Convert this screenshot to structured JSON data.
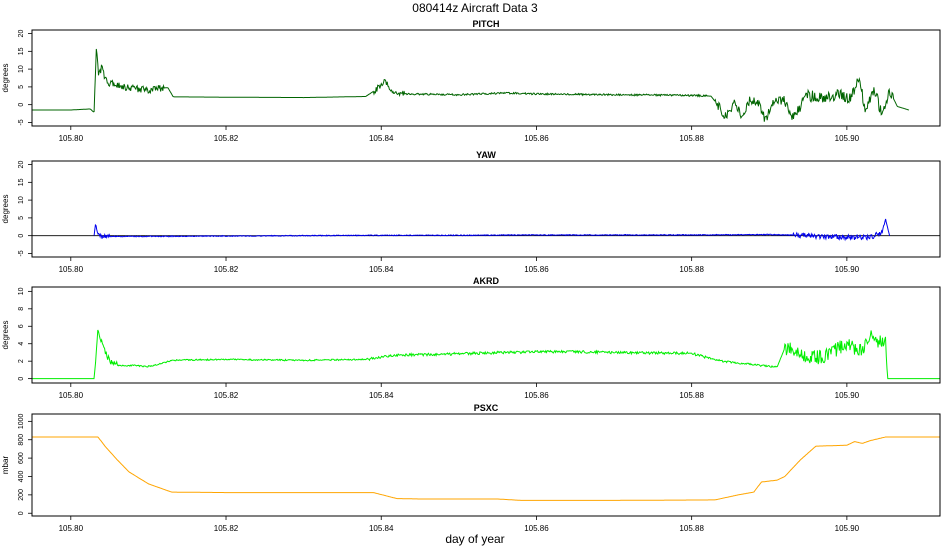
{
  "figure": {
    "title": "080414z   Aircraft Data 3",
    "xlabel": "day of year"
  },
  "chart_data": [
    {
      "type": "line",
      "title": "PITCH",
      "ylabel": "degrees",
      "xlim": [
        105.795,
        105.912
      ],
      "ylim": [
        -6,
        21
      ],
      "yticks": [
        -5,
        0,
        5,
        10,
        15,
        20
      ],
      "xticks": [
        "105.80",
        "105.82",
        "105.84",
        "105.86",
        "105.88",
        "105.90"
      ],
      "zero_line": false,
      "color": "#006400",
      "noise": [
        [
          105.8035,
          105.812,
          1.0
        ],
        [
          105.839,
          105.843,
          0.9
        ],
        [
          105.843,
          105.882,
          0.25
        ],
        [
          105.883,
          105.892,
          1.3
        ],
        [
          105.892,
          105.906,
          1.6
        ]
      ],
      "x": [
        105.795,
        105.8,
        105.8025,
        105.803,
        105.8033,
        105.8036,
        105.804,
        105.8045,
        105.805,
        105.806,
        105.808,
        105.81,
        105.8125,
        105.8132,
        105.82,
        105.83,
        105.838,
        105.8395,
        105.8405,
        105.8415,
        105.843,
        105.85,
        105.856,
        105.86,
        105.87,
        105.88,
        105.8825,
        105.8835,
        105.8845,
        105.8855,
        105.8865,
        105.8875,
        105.8885,
        105.8895,
        105.8905,
        105.892,
        105.893,
        105.895,
        105.897,
        105.899,
        105.9005,
        105.9015,
        105.9025,
        105.9035,
        105.9045,
        105.9055,
        105.9065,
        105.908
      ],
      "y": [
        -1.5,
        -1.5,
        -1.2,
        -2.2,
        16.5,
        8.0,
        10.5,
        7.0,
        6.0,
        5.5,
        4.5,
        4.2,
        4.8,
        2.2,
        2.1,
        2.0,
        2.3,
        4.5,
        6.5,
        3.5,
        3.0,
        2.8,
        3.3,
        3.0,
        2.8,
        2.6,
        2.4,
        -0.5,
        -3.5,
        0.5,
        -3.0,
        1.2,
        1.2,
        -4.5,
        1.0,
        1.3,
        -3.5,
        2.5,
        2.0,
        3.0,
        1.5,
        7.5,
        -2.0,
        5.0,
        -3.0,
        4.0,
        -0.5,
        -1.5
      ]
    },
    {
      "type": "line",
      "title": "YAW",
      "ylabel": "degrees",
      "xlim": [
        105.795,
        105.912
      ],
      "ylim": [
        -6,
        21
      ],
      "yticks": [
        -5,
        0,
        5,
        10,
        15,
        20
      ],
      "xticks": [
        "105.80",
        "105.82",
        "105.84",
        "105.86",
        "105.88",
        "105.90"
      ],
      "zero_line": true,
      "color": "#0000ee",
      "noise": [
        [
          105.8035,
          105.805,
          0.6
        ],
        [
          105.805,
          105.893,
          0.12
        ],
        [
          105.893,
          105.905,
          0.7
        ]
      ],
      "x": [
        105.803,
        105.8032,
        105.8034,
        105.8036,
        105.804,
        105.8045,
        105.805,
        105.81,
        105.82,
        105.83,
        105.84,
        105.85,
        105.86,
        105.87,
        105.88,
        105.89,
        105.895,
        105.9,
        105.903,
        105.9045,
        105.905,
        105.9055
      ],
      "y": [
        0.0,
        3.5,
        1.0,
        0.5,
        -0.5,
        0.0,
        -0.2,
        -0.2,
        -0.1,
        0.0,
        0.1,
        0.1,
        0.2,
        0.2,
        0.2,
        0.3,
        0.0,
        -0.5,
        -0.5,
        1.0,
        4.5,
        0.0
      ]
    },
    {
      "type": "line",
      "title": "AKRD",
      "ylabel": "degrees",
      "xlim": [
        105.795,
        105.912
      ],
      "ylim": [
        -0.5,
        10.5
      ],
      "yticks": [
        0,
        2,
        4,
        6,
        8,
        10
      ],
      "xticks": [
        "105.80",
        "105.82",
        "105.84",
        "105.86",
        "105.88",
        "105.90"
      ],
      "zero_line": false,
      "color": "#00ee00",
      "noise": [
        [
          105.8035,
          105.806,
          0.4
        ],
        [
          105.806,
          105.838,
          0.08
        ],
        [
          105.838,
          105.882,
          0.15
        ],
        [
          105.882,
          105.891,
          0.1
        ],
        [
          105.892,
          105.9052,
          0.8
        ]
      ],
      "x": [
        105.795,
        105.803,
        105.8032,
        105.8035,
        105.804,
        105.805,
        105.806,
        105.808,
        105.81,
        105.8115,
        105.813,
        105.82,
        105.83,
        105.838,
        105.842,
        105.848,
        105.856,
        105.864,
        105.87,
        105.88,
        105.882,
        105.884,
        105.888,
        105.891,
        105.892,
        105.8935,
        105.895,
        105.897,
        105.9,
        105.902,
        105.903,
        105.904,
        105.905,
        105.9052,
        105.906,
        105.912
      ],
      "y": [
        0.0,
        0.0,
        2.0,
        5.8,
        4.0,
        2.0,
        1.5,
        1.5,
        1.4,
        1.7,
        2.1,
        2.2,
        2.1,
        2.2,
        2.7,
        2.8,
        3.0,
        3.1,
        3.0,
        2.9,
        2.4,
        2.0,
        1.6,
        1.3,
        3.5,
        3.3,
        2.4,
        2.5,
        4.0,
        3.0,
        5.0,
        4.0,
        4.5,
        0.0,
        0.0,
        0.0
      ]
    },
    {
      "type": "line",
      "title": "PSXC",
      "ylabel": "mbar",
      "xlim": [
        105.795,
        105.912
      ],
      "ylim": [
        -30,
        1080
      ],
      "yticks": [
        0,
        200,
        400,
        600,
        800,
        1000
      ],
      "xticks": [
        "105.80",
        "105.82",
        "105.84",
        "105.86",
        "105.88",
        "105.90"
      ],
      "zero_line": false,
      "color": "#ffa500",
      "noise": [],
      "x": [
        105.795,
        105.8035,
        105.8045,
        105.806,
        105.8075,
        105.81,
        105.813,
        105.82,
        105.839,
        105.842,
        105.845,
        105.855,
        105.858,
        105.87,
        105.883,
        105.886,
        105.888,
        105.889,
        105.891,
        105.892,
        105.894,
        105.896,
        105.9,
        105.901,
        105.902,
        105.903,
        105.905,
        105.912
      ],
      "y": [
        830,
        830,
        720,
        580,
        450,
        320,
        230,
        225,
        225,
        160,
        155,
        155,
        140,
        140,
        145,
        200,
        230,
        340,
        360,
        400,
        580,
        730,
        740,
        780,
        760,
        790,
        830,
        830
      ]
    }
  ]
}
